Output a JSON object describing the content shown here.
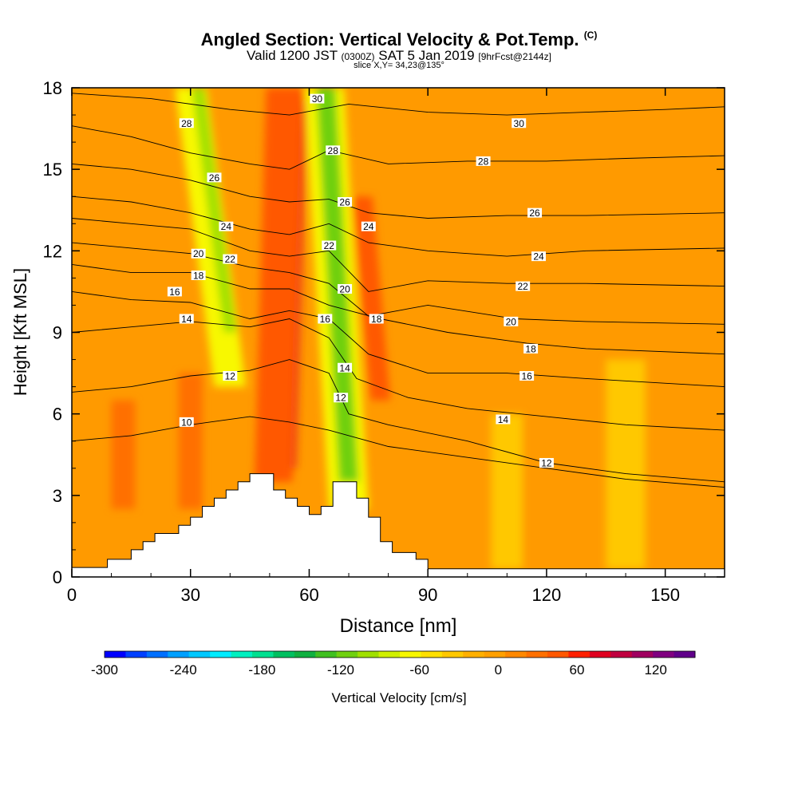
{
  "header": {
    "title": "Angled Section: Vertical Velocity & Pot.Temp.",
    "title_unit": "(C)",
    "valid_prefix": "Valid 1200 JST",
    "valid_utc": "(0300Z)",
    "valid_date": "SAT 5 Jan 2019",
    "forecast_tag": "[9hrFcst@2144z]",
    "slice": "slice X,Y= 34,23@135°"
  },
  "chart_data": {
    "type": "heatmap",
    "xlabel": "Distance [nm]",
    "ylabel": "Height [Kft MSL]",
    "xlim": [
      0,
      165
    ],
    "ylim": [
      0,
      18
    ],
    "x_ticks": [
      "0",
      "30",
      "60",
      "90",
      "120",
      "150"
    ],
    "y_ticks": [
      "0",
      "3",
      "6",
      "9",
      "12",
      "15",
      "18"
    ],
    "colorbar": {
      "label": "Vertical Velocity [cm/s]",
      "range": [
        -300,
        150
      ],
      "tick_labels": [
        "-300",
        "-240",
        "-180",
        "-120",
        "-60",
        "0",
        "60",
        "120"
      ],
      "tick_values": [
        -300,
        -240,
        -180,
        -120,
        -60,
        0,
        60,
        120
      ],
      "colors": [
        "#0000ff",
        "#0040ff",
        "#0070ff",
        "#00a0ff",
        "#00c8ff",
        "#00ecff",
        "#00f0c0",
        "#00e090",
        "#00c060",
        "#10b040",
        "#40c020",
        "#70d010",
        "#a0e000",
        "#d0f000",
        "#f8f800",
        "#ffe000",
        "#ffc800",
        "#ffb000",
        "#ffa000",
        "#ff8800",
        "#ff7000",
        "#ff5800",
        "#ff2000",
        "#e00020",
        "#c00040",
        "#a00060",
        "#800080",
        "#60008a"
      ]
    },
    "background_color": "#ff9a00",
    "plumes": [
      {
        "x": 52,
        "half_width": 2.2,
        "y_from": 4.5,
        "y_to": 18,
        "level": "#60008a",
        "tilt": 0.1
      },
      {
        "x": 53,
        "half_width": 3.6,
        "y_from": 4.0,
        "y_to": 18,
        "level": "#e00020",
        "tilt": 0.1
      },
      {
        "x": 51,
        "half_width": 4.8,
        "y_from": 3.5,
        "y_to": 18,
        "level": "#ff5800",
        "tilt": 0.1
      },
      {
        "x": 70,
        "half_width": 5.0,
        "y_from": 2.5,
        "y_to": 18,
        "level": "#f8f800",
        "tilt": -0.2
      },
      {
        "x": 70,
        "half_width": 2.5,
        "y_from": 3.5,
        "y_to": 18,
        "level": "#70d010",
        "tilt": -0.2
      },
      {
        "x": 40,
        "half_width": 4.0,
        "y_from": 7,
        "y_to": 18,
        "level": "#f8f800",
        "tilt": -0.45
      },
      {
        "x": 40,
        "half_width": 1.6,
        "y_from": 9,
        "y_to": 18,
        "level": "#a0e000",
        "tilt": -0.45
      },
      {
        "x": 78,
        "half_width": 2.5,
        "y_from": 6.5,
        "y_to": 14,
        "level": "#ff5800",
        "tilt": -0.3
      },
      {
        "x": 13,
        "half_width": 3.0,
        "y_from": 2.5,
        "y_to": 6.5,
        "level": "#ff7000",
        "tilt": 0
      },
      {
        "x": 30,
        "half_width": 3.0,
        "y_from": 2.5,
        "y_to": 7.5,
        "level": "#ff7000",
        "tilt": 0
      },
      {
        "x": 110,
        "half_width": 4.0,
        "y_from": 0.3,
        "y_to": 6,
        "level": "#ffc800",
        "tilt": 0
      },
      {
        "x": 140,
        "half_width": 5.0,
        "y_from": 0.3,
        "y_to": 8,
        "level": "#ffc800",
        "tilt": 0
      }
    ],
    "terrain": [
      [
        0,
        0
      ],
      [
        0,
        0.35
      ],
      [
        9,
        0.35
      ],
      [
        9,
        0.65
      ],
      [
        15,
        0.65
      ],
      [
        15,
        1.0
      ],
      [
        18,
        1.0
      ],
      [
        18,
        1.3
      ],
      [
        21,
        1.3
      ],
      [
        21,
        1.6
      ],
      [
        27,
        1.6
      ],
      [
        27,
        1.9
      ],
      [
        30,
        1.9
      ],
      [
        30,
        2.2
      ],
      [
        33,
        2.2
      ],
      [
        33,
        2.6
      ],
      [
        36,
        2.6
      ],
      [
        36,
        2.9
      ],
      [
        39,
        2.9
      ],
      [
        39,
        3.2
      ],
      [
        42,
        3.2
      ],
      [
        42,
        3.5
      ],
      [
        45,
        3.5
      ],
      [
        45,
        3.8
      ],
      [
        51,
        3.8
      ],
      [
        51,
        3.2
      ],
      [
        54,
        3.2
      ],
      [
        54,
        2.9
      ],
      [
        57,
        2.9
      ],
      [
        57,
        2.6
      ],
      [
        60,
        2.6
      ],
      [
        60,
        2.3
      ],
      [
        63,
        2.3
      ],
      [
        63,
        2.6
      ],
      [
        66,
        2.6
      ],
      [
        66,
        3.5
      ],
      [
        72,
        3.5
      ],
      [
        72,
        2.9
      ],
      [
        75,
        2.9
      ],
      [
        75,
        2.2
      ],
      [
        78,
        2.2
      ],
      [
        78,
        1.3
      ],
      [
        81,
        1.3
      ],
      [
        81,
        0.9
      ],
      [
        87,
        0.9
      ],
      [
        87,
        0.65
      ],
      [
        90,
        0.65
      ],
      [
        90,
        0.3
      ],
      [
        165,
        0.3
      ],
      [
        165,
        0
      ]
    ],
    "isentropes": [
      {
        "label": "10",
        "points": [
          [
            0,
            5.0
          ],
          [
            15,
            5.2
          ],
          [
            30,
            5.6
          ],
          [
            45,
            5.9
          ],
          [
            55,
            5.7
          ],
          [
            65,
            5.4
          ],
          [
            80,
            4.8
          ],
          [
            100,
            4.4
          ],
          [
            120,
            4.0
          ],
          [
            140,
            3.6
          ],
          [
            165,
            3.3
          ]
        ]
      },
      {
        "label": "12",
        "points": [
          [
            0,
            6.8
          ],
          [
            15,
            7.0
          ],
          [
            30,
            7.4
          ],
          [
            45,
            7.6
          ],
          [
            55,
            8.0
          ],
          [
            65,
            7.5
          ],
          [
            70,
            6.0
          ],
          [
            80,
            5.6
          ],
          [
            100,
            5.0
          ],
          [
            120,
            4.2
          ],
          [
            140,
            3.8
          ],
          [
            165,
            3.5
          ]
        ]
      },
      {
        "label": "14",
        "points": [
          [
            0,
            9.0
          ],
          [
            15,
            9.2
          ],
          [
            30,
            9.4
          ],
          [
            45,
            9.2
          ],
          [
            55,
            9.5
          ],
          [
            65,
            8.8
          ],
          [
            72,
            7.3
          ],
          [
            85,
            6.6
          ],
          [
            100,
            6.2
          ],
          [
            120,
            5.9
          ],
          [
            140,
            5.6
          ],
          [
            165,
            5.4
          ]
        ]
      },
      {
        "label": "16",
        "points": [
          [
            0,
            10.5
          ],
          [
            15,
            10.2
          ],
          [
            30,
            10.1
          ],
          [
            45,
            9.5
          ],
          [
            55,
            9.8
          ],
          [
            65,
            9.5
          ],
          [
            75,
            8.2
          ],
          [
            90,
            7.5
          ],
          [
            110,
            7.5
          ],
          [
            130,
            7.3
          ],
          [
            165,
            7.0
          ]
        ]
      },
      {
        "label": "18",
        "points": [
          [
            0,
            11.5
          ],
          [
            15,
            11.2
          ],
          [
            30,
            11.2
          ],
          [
            45,
            10.6
          ],
          [
            55,
            10.6
          ],
          [
            65,
            10.0
          ],
          [
            78,
            9.5
          ],
          [
            95,
            9.0
          ],
          [
            115,
            8.6
          ],
          [
            130,
            8.4
          ],
          [
            165,
            8.2
          ]
        ]
      },
      {
        "label": "20",
        "points": [
          [
            0,
            12.3
          ],
          [
            15,
            12.1
          ],
          [
            30,
            11.9
          ],
          [
            45,
            11.4
          ],
          [
            55,
            11.2
          ],
          [
            65,
            10.8
          ],
          [
            75,
            9.6
          ],
          [
            90,
            10.0
          ],
          [
            112,
            9.5
          ],
          [
            130,
            9.4
          ],
          [
            165,
            9.3
          ]
        ]
      },
      {
        "label": "22",
        "points": [
          [
            0,
            13.2
          ],
          [
            15,
            13.0
          ],
          [
            30,
            12.8
          ],
          [
            45,
            12.0
          ],
          [
            55,
            11.8
          ],
          [
            65,
            12.0
          ],
          [
            75,
            10.5
          ],
          [
            90,
            10.9
          ],
          [
            110,
            10.8
          ],
          [
            130,
            10.8
          ],
          [
            165,
            10.7
          ]
        ]
      },
      {
        "label": "24",
        "points": [
          [
            0,
            14.0
          ],
          [
            15,
            13.8
          ],
          [
            30,
            13.4
          ],
          [
            45,
            12.8
          ],
          [
            55,
            12.6
          ],
          [
            65,
            13.0
          ],
          [
            75,
            12.3
          ],
          [
            90,
            12.0
          ],
          [
            110,
            11.8
          ],
          [
            130,
            12.0
          ],
          [
            165,
            12.1
          ]
        ]
      },
      {
        "label": "26",
        "points": [
          [
            0,
            15.2
          ],
          [
            15,
            15.0
          ],
          [
            30,
            14.6
          ],
          [
            45,
            14.0
          ],
          [
            55,
            13.8
          ],
          [
            65,
            13.9
          ],
          [
            75,
            13.4
          ],
          [
            90,
            13.2
          ],
          [
            110,
            13.3
          ],
          [
            130,
            13.3
          ],
          [
            165,
            13.4
          ]
        ]
      },
      {
        "label": "28",
        "points": [
          [
            0,
            16.6
          ],
          [
            15,
            16.2
          ],
          [
            30,
            15.6
          ],
          [
            45,
            15.2
          ],
          [
            55,
            15.0
          ],
          [
            65,
            15.7
          ],
          [
            80,
            15.2
          ],
          [
            100,
            15.3
          ],
          [
            120,
            15.3
          ],
          [
            140,
            15.4
          ],
          [
            165,
            15.5
          ]
        ]
      },
      {
        "label": "30",
        "points": [
          [
            0,
            17.8
          ],
          [
            20,
            17.6
          ],
          [
            40,
            17.2
          ],
          [
            55,
            17.0
          ],
          [
            70,
            17.4
          ],
          [
            90,
            17.1
          ],
          [
            110,
            17.0
          ],
          [
            130,
            17.1
          ],
          [
            150,
            17.2
          ],
          [
            165,
            17.3
          ]
        ]
      }
    ],
    "isentrope_labels": [
      {
        "text": "10",
        "x": 29,
        "y": 5.7
      },
      {
        "text": "12",
        "x": 40,
        "y": 7.4
      },
      {
        "text": "12",
        "x": 68,
        "y": 6.6
      },
      {
        "text": "12",
        "x": 120,
        "y": 4.2
      },
      {
        "text": "14",
        "x": 29,
        "y": 9.5
      },
      {
        "text": "14",
        "x": 69,
        "y": 7.7
      },
      {
        "text": "14",
        "x": 109,
        "y": 5.8
      },
      {
        "text": "16",
        "x": 26,
        "y": 10.5
      },
      {
        "text": "16",
        "x": 64,
        "y": 9.5
      },
      {
        "text": "16",
        "x": 115,
        "y": 7.4
      },
      {
        "text": "18",
        "x": 32,
        "y": 11.1
      },
      {
        "text": "18",
        "x": 77,
        "y": 9.5
      },
      {
        "text": "18",
        "x": 116,
        "y": 8.4
      },
      {
        "text": "20",
        "x": 32,
        "y": 11.9
      },
      {
        "text": "20",
        "x": 69,
        "y": 10.6
      },
      {
        "text": "20",
        "x": 111,
        "y": 9.4
      },
      {
        "text": "22",
        "x": 40,
        "y": 11.7
      },
      {
        "text": "22",
        "x": 65,
        "y": 12.2
      },
      {
        "text": "22",
        "x": 114,
        "y": 10.7
      },
      {
        "text": "24",
        "x": 39,
        "y": 12.9
      },
      {
        "text": "24",
        "x": 75,
        "y": 12.9
      },
      {
        "text": "24",
        "x": 118,
        "y": 11.8
      },
      {
        "text": "26",
        "x": 36,
        "y": 14.7
      },
      {
        "text": "26",
        "x": 69,
        "y": 13.8
      },
      {
        "text": "26",
        "x": 117,
        "y": 13.4
      },
      {
        "text": "28",
        "x": 29,
        "y": 16.7
      },
      {
        "text": "28",
        "x": 66,
        "y": 15.7
      },
      {
        "text": "28",
        "x": 104,
        "y": 15.3
      },
      {
        "text": "30",
        "x": 62,
        "y": 17.6
      },
      {
        "text": "30",
        "x": 113,
        "y": 16.7
      }
    ]
  }
}
